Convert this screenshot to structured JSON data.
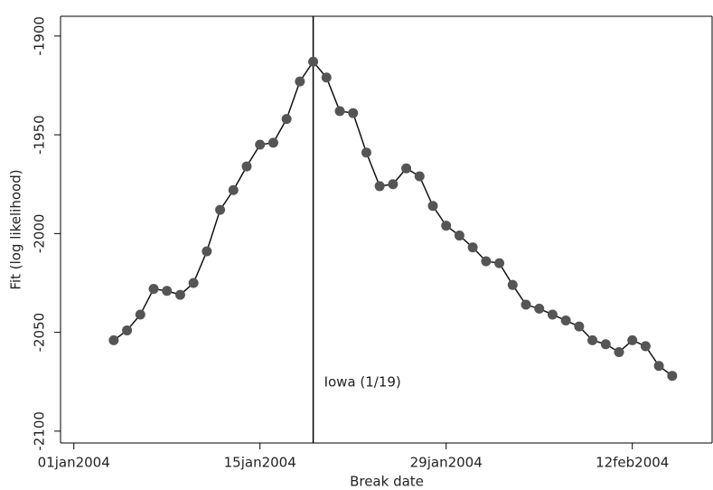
{
  "chart_data": {
    "type": "line",
    "x_label": "Break date",
    "y_label": "Fit (log likelihood)",
    "x": [
      "2004-01-04",
      "2004-01-05",
      "2004-01-06",
      "2004-01-07",
      "2004-01-08",
      "2004-01-09",
      "2004-01-10",
      "2004-01-11",
      "2004-01-12",
      "2004-01-13",
      "2004-01-14",
      "2004-01-15",
      "2004-01-16",
      "2004-01-17",
      "2004-01-18",
      "2004-01-19",
      "2004-01-20",
      "2004-01-21",
      "2004-01-22",
      "2004-01-23",
      "2004-01-24",
      "2004-01-25",
      "2004-01-26",
      "2004-01-27",
      "2004-01-28",
      "2004-01-29",
      "2004-01-30",
      "2004-01-31",
      "2004-02-01",
      "2004-02-02",
      "2004-02-03",
      "2004-02-04",
      "2004-02-05",
      "2004-02-06",
      "2004-02-07",
      "2004-02-08",
      "2004-02-09",
      "2004-02-10",
      "2004-02-11",
      "2004-02-12",
      "2004-02-13",
      "2004-02-14",
      "2004-02-15"
    ],
    "series": [
      {
        "color": "#555555",
        "values": [
          -2054,
          -2049,
          -2041,
          -2028,
          -2029,
          -2031,
          -2025,
          -2009,
          -1988,
          -1978,
          -1966,
          -1955,
          -1954,
          -1942,
          -1923,
          -1913,
          -1921,
          -1938,
          -1939,
          -1959,
          -1976,
          -1975,
          -1967,
          -1971,
          -1986,
          -1996,
          -2001,
          -2007,
          -2014,
          -2015,
          -2026,
          -2036,
          -2038,
          -2041,
          -2044,
          -2047,
          -2054,
          -2056,
          -2060,
          -2054,
          -2057,
          -2067,
          -2072
        ]
      }
    ],
    "xlim": [
      "2003-12-31",
      "2004-02-18"
    ],
    "xticks": [
      {
        "value": "2004-01-01",
        "label": "01jan2004"
      },
      {
        "value": "2004-01-15",
        "label": "15jan2004"
      },
      {
        "value": "2004-01-29",
        "label": "29jan2004"
      },
      {
        "value": "2004-02-12",
        "label": "12feb2004"
      }
    ],
    "ylim": [
      -2106,
      -1890
    ],
    "yticks": [
      -2100,
      -2050,
      -2000,
      -1950,
      -1900
    ],
    "vline": {
      "x": "2004-01-19",
      "label": "Iowa (1/19)"
    }
  }
}
